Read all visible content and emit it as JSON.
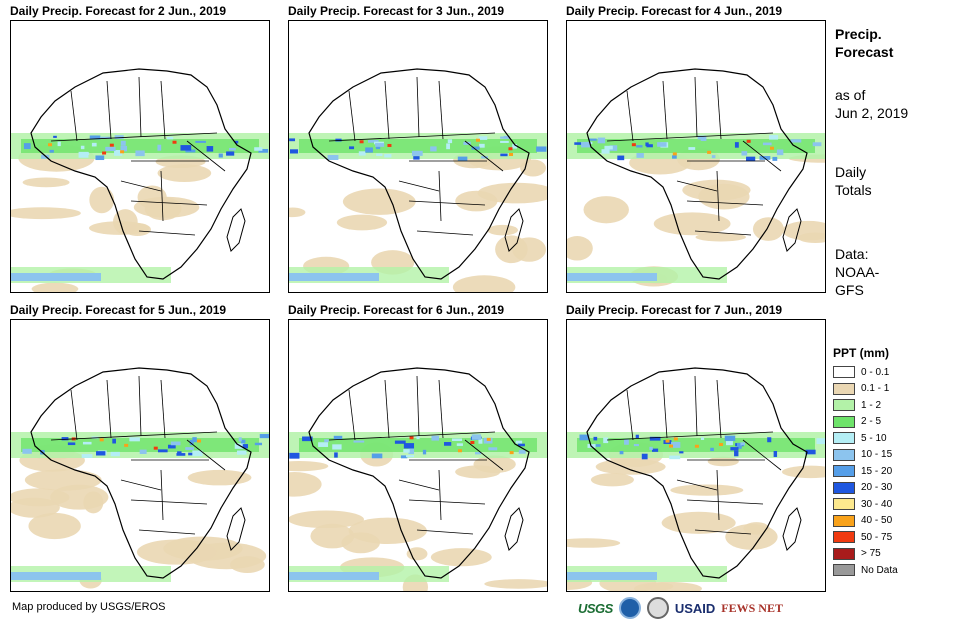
{
  "panels": [
    {
      "title": "Daily Precip. Forecast for 2 Jun., 2019"
    },
    {
      "title": "Daily Precip. Forecast for 3 Jun., 2019"
    },
    {
      "title": "Daily Precip. Forecast for 4 Jun., 2019"
    },
    {
      "title": "Daily Precip. Forecast for 5 Jun., 2019"
    },
    {
      "title": "Daily Precip. Forecast for 6 Jun., 2019"
    },
    {
      "title": "Daily Precip. Forecast for 7 Jun., 2019"
    }
  ],
  "sidebar": {
    "title_line1": "Precip.",
    "title_line2": "Forecast",
    "asof_line1": "as of",
    "asof_line2": "Jun 2, 2019",
    "totals_line1": "Daily",
    "totals_line2": "Totals",
    "data_line1": "Data:",
    "data_line2": "NOAA-",
    "data_line3": "GFS"
  },
  "legend": {
    "title": "PPT (mm)",
    "items": [
      {
        "label": "0 - 0.1",
        "color": "#ffffff"
      },
      {
        "label": "0.1 - 1",
        "color": "#ead7b3"
      },
      {
        "label": "1 - 2",
        "color": "#b3f2a8"
      },
      {
        "label": "2 - 5",
        "color": "#6ee36a"
      },
      {
        "label": "5 - 10",
        "color": "#b4eef5"
      },
      {
        "label": "10 - 15",
        "color": "#8cc4ee"
      },
      {
        "label": "15 - 20",
        "color": "#559ee8"
      },
      {
        "label": "20 - 30",
        "color": "#1f57e0"
      },
      {
        "label": "30 - 40",
        "color": "#fde98e"
      },
      {
        "label": "40 - 50",
        "color": "#f9a21a"
      },
      {
        "label": "50 - 75",
        "color": "#f03a10"
      },
      {
        "label": "> 75",
        "color": "#a81b1b"
      },
      {
        "label": "No Data",
        "color": "#999999"
      }
    ]
  },
  "credit": "Map produced by USGS/EROS",
  "logos": {
    "usgs": "USGS",
    "usaid": "USAID",
    "fews": "FEWS NET"
  }
}
